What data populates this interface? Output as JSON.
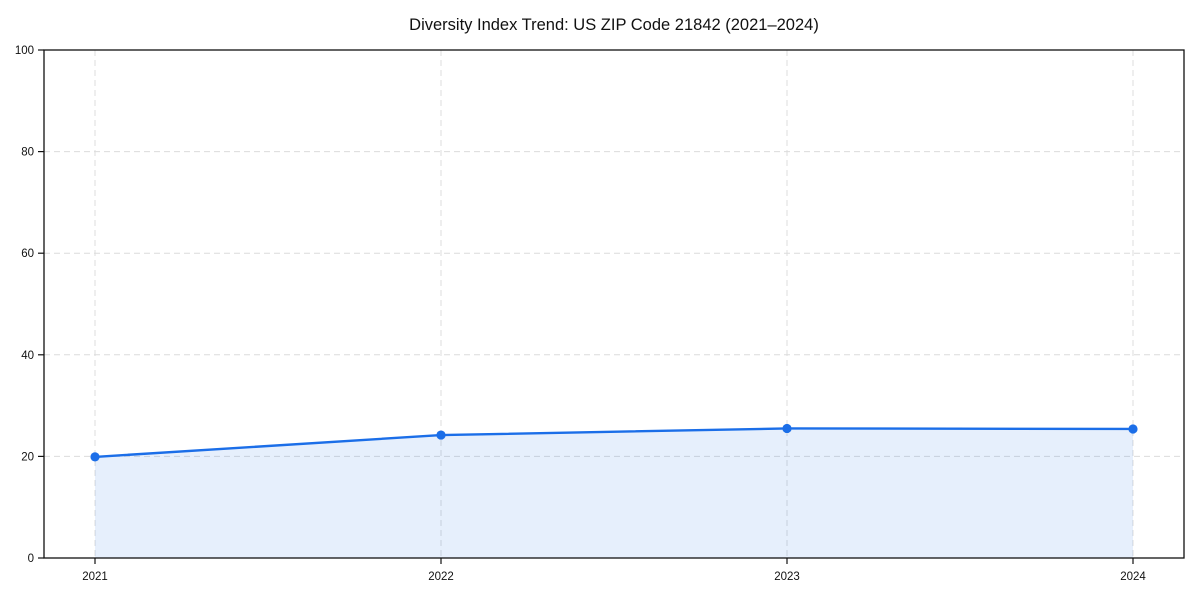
{
  "chart_data": {
    "type": "area",
    "title": "Diversity Index Trend: US ZIP Code 21842 (2021–2024)",
    "categories": [
      "2021",
      "2022",
      "2023",
      "2024"
    ],
    "series": [
      {
        "name": "Diversity Index",
        "values": [
          19.9,
          24.2,
          25.5,
          25.4
        ]
      }
    ],
    "xlabel": "",
    "ylabel": "",
    "ylim": [
      0,
      100
    ],
    "yticks": [
      0,
      20,
      40,
      60,
      80,
      100
    ],
    "grid": true,
    "grid_style": "dashed",
    "legend_position": "none",
    "marker": "circle",
    "colors": {
      "line": "#1b6ee8",
      "fill": "#1b6ee8",
      "grid": "#dcdcdc",
      "spine": "#111111",
      "text": "#111111"
    }
  }
}
